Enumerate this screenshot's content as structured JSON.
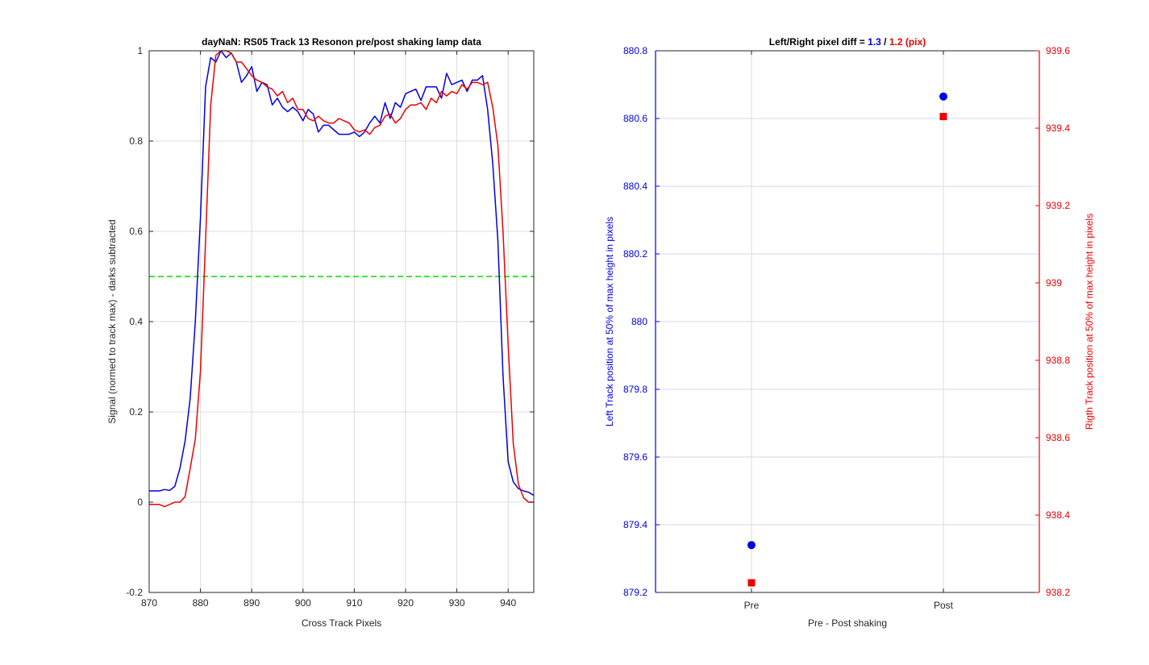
{
  "chart_data": [
    {
      "type": "line",
      "title": "dayNaN: RS05  Track 13 Resonon pre/post shaking lamp data",
      "xlabel": "Cross Track Pixels",
      "ylabel": "Signal (normed to track max) - darks subtracted",
      "xlim": [
        870,
        945
      ],
      "ylim": [
        -0.2,
        1
      ],
      "xticks": [
        "870",
        "880",
        "890",
        "900",
        "910",
        "920",
        "930",
        "940"
      ],
      "xtick_values": [
        870,
        880,
        890,
        900,
        910,
        920,
        930,
        940
      ],
      "yticks": [
        "-0.2",
        "0",
        "0.2",
        "0.4",
        "0.6",
        "0.8",
        "1"
      ],
      "ytick_values": [
        -0.2,
        0,
        0.2,
        0.4,
        0.6,
        0.8,
        1
      ],
      "grid": true,
      "reference_line": {
        "y": 0.5,
        "color": "#00dd00",
        "style": "dashed"
      },
      "series": [
        {
          "color": "#0000e0",
          "x": [
            870,
            871,
            872,
            873,
            874,
            875,
            876,
            877,
            878,
            879,
            880,
            881,
            882,
            883,
            884,
            885,
            886,
            887,
            888,
            889,
            890,
            891,
            892,
            893,
            894,
            895,
            896,
            897,
            898,
            899,
            900,
            901,
            902,
            903,
            904,
            905,
            906,
            907,
            908,
            909,
            910,
            911,
            912,
            913,
            914,
            915,
            916,
            917,
            918,
            919,
            920,
            921,
            922,
            923,
            924,
            925,
            926,
            927,
            928,
            929,
            930,
            931,
            932,
            933,
            934,
            935,
            936,
            937,
            938,
            939,
            940,
            941,
            942,
            943,
            944,
            945
          ],
          "values": [
            0.025,
            0.025,
            0.025,
            0.028,
            0.026,
            0.035,
            0.075,
            0.135,
            0.23,
            0.4,
            0.63,
            0.92,
            0.985,
            0.975,
            1.0,
            0.985,
            0.995,
            0.975,
            0.93,
            0.945,
            0.965,
            0.91,
            0.93,
            0.925,
            0.88,
            0.895,
            0.875,
            0.865,
            0.875,
            0.865,
            0.845,
            0.87,
            0.86,
            0.82,
            0.835,
            0.835,
            0.825,
            0.815,
            0.815,
            0.815,
            0.82,
            0.81,
            0.82,
            0.84,
            0.855,
            0.84,
            0.885,
            0.85,
            0.885,
            0.875,
            0.905,
            0.91,
            0.915,
            0.89,
            0.92,
            0.92,
            0.92,
            0.895,
            0.95,
            0.925,
            0.93,
            0.935,
            0.91,
            0.935,
            0.935,
            0.945,
            0.87,
            0.75,
            0.58,
            0.28,
            0.09,
            0.045,
            0.03,
            0.025,
            0.022,
            0.015
          ]
        },
        {
          "color": "#ee0000",
          "x": [
            870,
            871,
            872,
            873,
            874,
            875,
            876,
            877,
            878,
            879,
            880,
            881,
            882,
            883,
            884,
            885,
            886,
            887,
            888,
            889,
            890,
            891,
            892,
            893,
            894,
            895,
            896,
            897,
            898,
            899,
            900,
            901,
            902,
            903,
            904,
            905,
            906,
            907,
            908,
            909,
            910,
            911,
            912,
            913,
            914,
            915,
            916,
            917,
            918,
            919,
            920,
            921,
            922,
            923,
            924,
            925,
            926,
            927,
            928,
            929,
            930,
            931,
            932,
            933,
            934,
            935,
            936,
            937,
            938,
            939,
            940,
            941,
            942,
            943,
            944,
            945
          ],
          "values": [
            -0.005,
            -0.005,
            -0.005,
            -0.01,
            -0.005,
            0.0,
            0.0,
            0.012,
            0.075,
            0.14,
            0.29,
            0.58,
            0.88,
            0.99,
            1.0,
            1.0,
            0.995,
            0.975,
            0.975,
            0.96,
            0.945,
            0.935,
            0.93,
            0.92,
            0.915,
            0.9,
            0.91,
            0.885,
            0.895,
            0.87,
            0.87,
            0.85,
            0.845,
            0.855,
            0.845,
            0.84,
            0.84,
            0.85,
            0.845,
            0.84,
            0.825,
            0.82,
            0.825,
            0.815,
            0.83,
            0.835,
            0.855,
            0.86,
            0.84,
            0.85,
            0.87,
            0.88,
            0.88,
            0.885,
            0.87,
            0.895,
            0.885,
            0.91,
            0.9,
            0.91,
            0.905,
            0.925,
            0.915,
            0.93,
            0.93,
            0.925,
            0.93,
            0.875,
            0.79,
            0.6,
            0.35,
            0.13,
            0.04,
            0.01,
            0.0,
            0.0
          ]
        }
      ]
    },
    {
      "type": "scatter",
      "title_parts": [
        {
          "text": "Left/Right pixel diff = ",
          "color": "#000000"
        },
        {
          "text": "1.3",
          "color": "#0000e0"
        },
        {
          "text": " / ",
          "color": "#000000"
        },
        {
          "text": "1.2 (pix)",
          "color": "#ee0000"
        }
      ],
      "xlabel": "Pre - Post shaking",
      "ylabel_left": "Left Track position at 50% of max height in pixels",
      "ylabel_right": "Rigth Track position at 50% of max height in pixels",
      "categories": [
        "Pre",
        "Post"
      ],
      "xlim": [
        0.5,
        2.5
      ],
      "ylim_left": [
        879.2,
        880.8
      ],
      "ylim_right": [
        938.2,
        939.6
      ],
      "yticks_left": [
        "879.2",
        "879.4",
        "879.6",
        "879.8",
        "880",
        "880.2",
        "880.4",
        "880.6",
        "880.8"
      ],
      "ytick_values_left": [
        879.2,
        879.4,
        879.6,
        879.8,
        880,
        880.2,
        880.4,
        880.6,
        880.8
      ],
      "yticks_right": [
        "938.2",
        "938.4",
        "938.6",
        "938.8",
        "939",
        "939.2",
        "939.4",
        "939.6"
      ],
      "ytick_values_right": [
        938.2,
        938.4,
        938.6,
        938.8,
        939,
        939.2,
        939.4,
        939.6
      ],
      "grid": true,
      "left_color": "#0000e0",
      "right_color": "#ee0000",
      "series": [
        {
          "axis": "left",
          "marker": "circle",
          "color": "#0000e0",
          "x": [
            1,
            2
          ],
          "values": [
            879.34,
            880.665
          ]
        },
        {
          "axis": "right",
          "marker": "square",
          "color": "#ee0000",
          "x": [
            1,
            2
          ],
          "values": [
            938.225,
            939.43
          ]
        }
      ]
    }
  ]
}
